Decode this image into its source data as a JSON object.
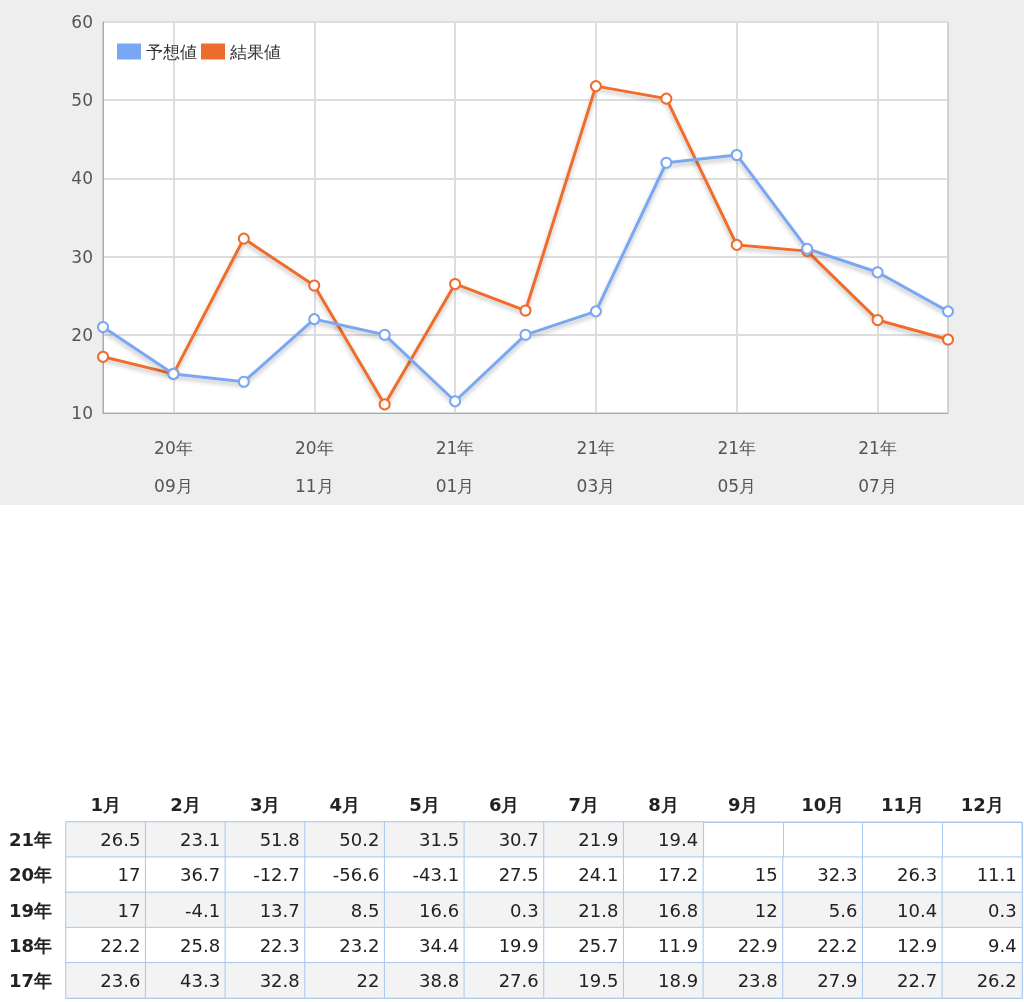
{
  "chart_data": [
    {
      "type": "line",
      "categories": [
        null,
        "20年\n09月",
        null,
        "20年\n11月",
        null,
        "21年\n01月",
        null,
        "21年\n03月",
        null,
        "21年\n05月",
        null,
        "21年\n07月",
        null
      ],
      "series": [
        {
          "name": "予想値",
          "color": "#7aa7f2",
          "values": [
            21,
            15,
            14,
            22,
            20,
            11.5,
            20,
            23,
            42,
            43,
            31,
            28,
            23
          ]
        },
        {
          "name": "結果値",
          "color": "#ee6d2c",
          "values": [
            17.2,
            15,
            32.3,
            26.3,
            11.1,
            26.5,
            23.1,
            51.8,
            50.2,
            31.5,
            30.7,
            21.9,
            19.4
          ]
        }
      ],
      "ylim": [
        10,
        60
      ],
      "yticks": [
        10,
        20,
        30,
        40,
        50,
        60
      ],
      "grid": true,
      "legend": "top left",
      "marker": "circle"
    },
    {
      "type": "heatmap",
      "categories": [
        "1月",
        "2月",
        "3月",
        "4月",
        "5月",
        "6月",
        "7月",
        "8月",
        "9月",
        "10月",
        "11月",
        "12月"
      ],
      "y_categories": [
        "21年",
        "20年",
        "19年",
        "18年",
        "17年"
      ],
      "cells": [
        [
          26.5,
          23.1,
          51.8,
          50.2,
          31.5,
          30.7,
          21.9,
          19.4,
          null,
          null,
          null,
          null
        ],
        [
          17,
          36.7,
          -12.7,
          -56.6,
          -43.1,
          27.5,
          24.1,
          17.2,
          15,
          32.3,
          26.3,
          11.1
        ],
        [
          17,
          -4.1,
          13.7,
          8.5,
          16.6,
          0.3,
          21.8,
          16.8,
          12,
          5.6,
          10.4,
          0.3
        ],
        [
          22.2,
          25.8,
          22.3,
          23.2,
          34.4,
          19.9,
          25.7,
          11.9,
          22.9,
          22.2,
          12.9,
          9.4
        ],
        [
          23.6,
          43.3,
          32.8,
          22,
          38.8,
          27.6,
          19.5,
          18.9,
          23.8,
          27.9,
          22.7,
          26.2
        ]
      ],
      "data_labels": true
    }
  ]
}
